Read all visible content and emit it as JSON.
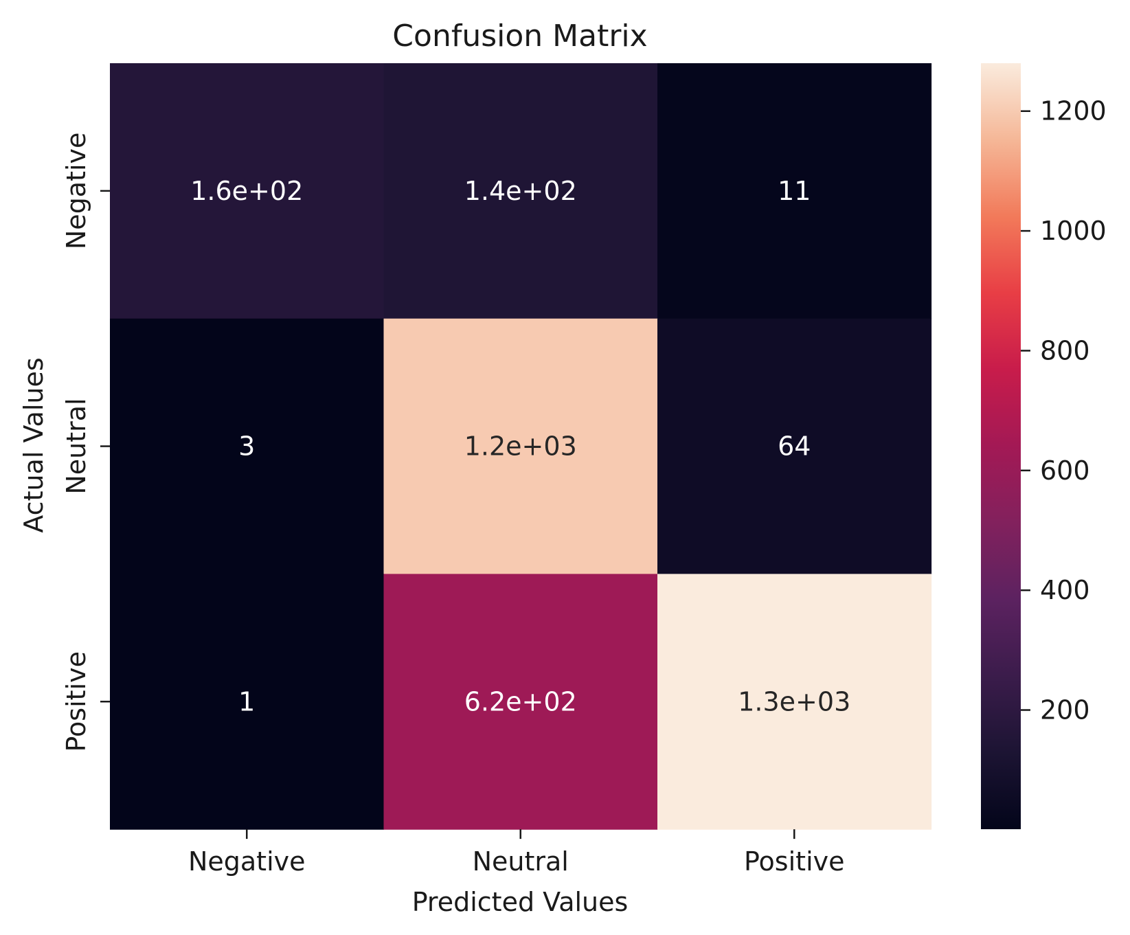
{
  "chart_data": {
    "type": "heatmap",
    "title": "Confusion Matrix",
    "xlabel": "Predicted Values",
    "ylabel": "Actual Values",
    "x_categories": [
      "Negative",
      "Neutral",
      "Positive"
    ],
    "y_categories": [
      "Negative",
      "Neutral",
      "Positive"
    ],
    "values": [
      [
        160,
        140,
        11
      ],
      [
        3,
        1200,
        64
      ],
      [
        1,
        620,
        1300
      ]
    ],
    "cell_labels": [
      [
        "1.6e+02",
        "1.4e+02",
        "11"
      ],
      [
        "3",
        "1.2e+03",
        "64"
      ],
      [
        "1",
        "6.2e+02",
        "1.3e+03"
      ]
    ],
    "colorbar": {
      "vmin": 1,
      "vmax": 1280,
      "ticks": [
        200,
        400,
        600,
        800,
        1000,
        1200
      ],
      "tick_labels": [
        "200",
        "400",
        "600",
        "800",
        "1000",
        "1200"
      ],
      "colormap": "rocket",
      "color_stops": [
        {
          "t": 0.0,
          "color": "#03051a"
        },
        {
          "t": 0.1,
          "color": "#1c1433"
        },
        {
          "t": 0.2,
          "color": "#3b1c4b"
        },
        {
          "t": 0.3,
          "color": "#5c2260"
        },
        {
          "t": 0.4,
          "color": "#82215d"
        },
        {
          "t": 0.5,
          "color": "#a31955"
        },
        {
          "t": 0.6,
          "color": "#c81c4b"
        },
        {
          "t": 0.7,
          "color": "#e83e45"
        },
        {
          "t": 0.8,
          "color": "#f27a5a"
        },
        {
          "t": 0.9,
          "color": "#f5b797"
        },
        {
          "t": 1.0,
          "color": "#faebdd"
        }
      ]
    },
    "grid": false
  }
}
